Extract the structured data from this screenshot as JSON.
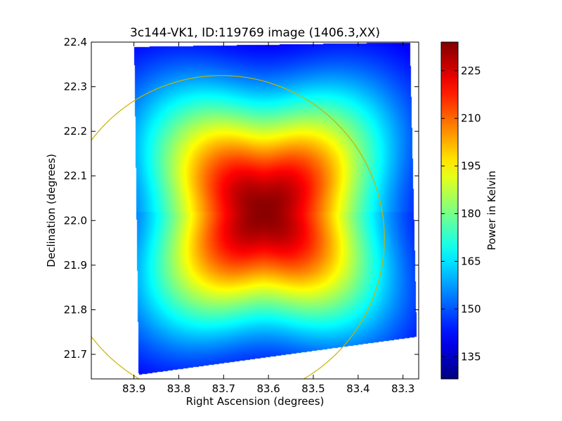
{
  "chart_data": {
    "type": "heatmap",
    "title": "3c144-VK1, ID:119769 image (1406.3,XX)",
    "xlabel": "Right Ascension (degrees)",
    "ylabel": "Declination (degrees)",
    "xlim": [
      83.995,
      83.265
    ],
    "ylim": [
      21.645,
      22.4
    ],
    "x_ticks": [
      83.9,
      83.8,
      83.7,
      83.6,
      83.5,
      83.4,
      83.3
    ],
    "x_tick_labels": [
      "83.9",
      "83.8",
      "83.7",
      "83.6",
      "83.5",
      "83.4",
      "83.3"
    ],
    "y_ticks": [
      21.7,
      21.8,
      21.9,
      22.0,
      22.1,
      22.2,
      22.3,
      22.4
    ],
    "y_tick_labels": [
      "21.7",
      "21.8",
      "21.9",
      "22.0",
      "22.1",
      "22.2",
      "22.3",
      "22.4"
    ],
    "grid": false,
    "colormap": "jet",
    "colorbar": {
      "label": "Power in Kelvin",
      "vmin": 128,
      "vmax": 234,
      "ticks": [
        135,
        150,
        165,
        180,
        195,
        210,
        225
      ],
      "tick_labels": [
        "135",
        "150",
        "165",
        "180",
        "195",
        "210",
        "225"
      ]
    },
    "peak": {
      "ra": 83.61,
      "dec": 22.02,
      "value": 233
    },
    "edge_value": 133,
    "data_footprint_corners": [
      {
        "ra": 83.9,
        "dec": 22.39
      },
      {
        "ra": 83.285,
        "dec": 22.4
      },
      {
        "ra": 83.27,
        "dec": 21.74
      },
      {
        "ra": 83.89,
        "dec": 21.655
      }
    ],
    "beam_circle": {
      "center_ra": 83.705,
      "center_dec": 21.96,
      "radius_deg": 0.365,
      "color": "#c8b400"
    }
  }
}
